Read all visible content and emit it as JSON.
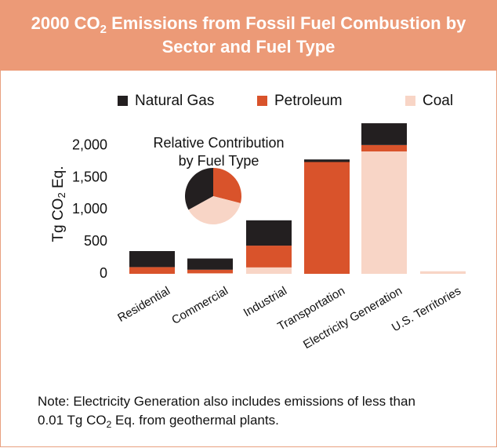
{
  "chart_data": {
    "type": "stacked_bar",
    "title": {
      "before": "2000 CO",
      "sub": "2",
      "after": " Emissions from Fossil Fuel Combustion by Sector and Fuel Type"
    },
    "y_label": {
      "before": "Tg CO",
      "sub": "2",
      "after": " Eq."
    },
    "categories": [
      "Residential",
      "Commercial",
      "Industrial",
      "Transportation",
      "Electricity Generation",
      "U.S. Territories"
    ],
    "series": [
      {
        "name": "Natural Gas",
        "color": "#231f20",
        "values": [
          250,
          175,
          395,
          40,
          340,
          0
        ]
      },
      {
        "name": "Petroleum",
        "color": "#d9532b",
        "values": [
          105,
          55,
          340,
          1745,
          100,
          0
        ]
      },
      {
        "name": "Coal",
        "color": "#f8d5c6",
        "values": [
          0,
          9,
          100,
          0,
          1910,
          40
        ]
      }
    ],
    "ylim": [
      0,
      2400
    ],
    "yticks": [
      0,
      500,
      {
        "value": 1000,
        "label": "1,000"
      },
      {
        "value": 1500,
        "label": "1,500"
      },
      {
        "value": 2000,
        "label": "2,000"
      }
    ],
    "pie": {
      "type": "pie",
      "title_lines": [
        "Relative Contribution",
        "by Fuel Type"
      ],
      "values": [
        33,
        29,
        38
      ]
    },
    "note": {
      "before": "Note:  Electricity Generation also includes emissions of less than 0.01 Tg CO",
      "sub": "2",
      "after": " Eq. from geothermal plants."
    }
  }
}
